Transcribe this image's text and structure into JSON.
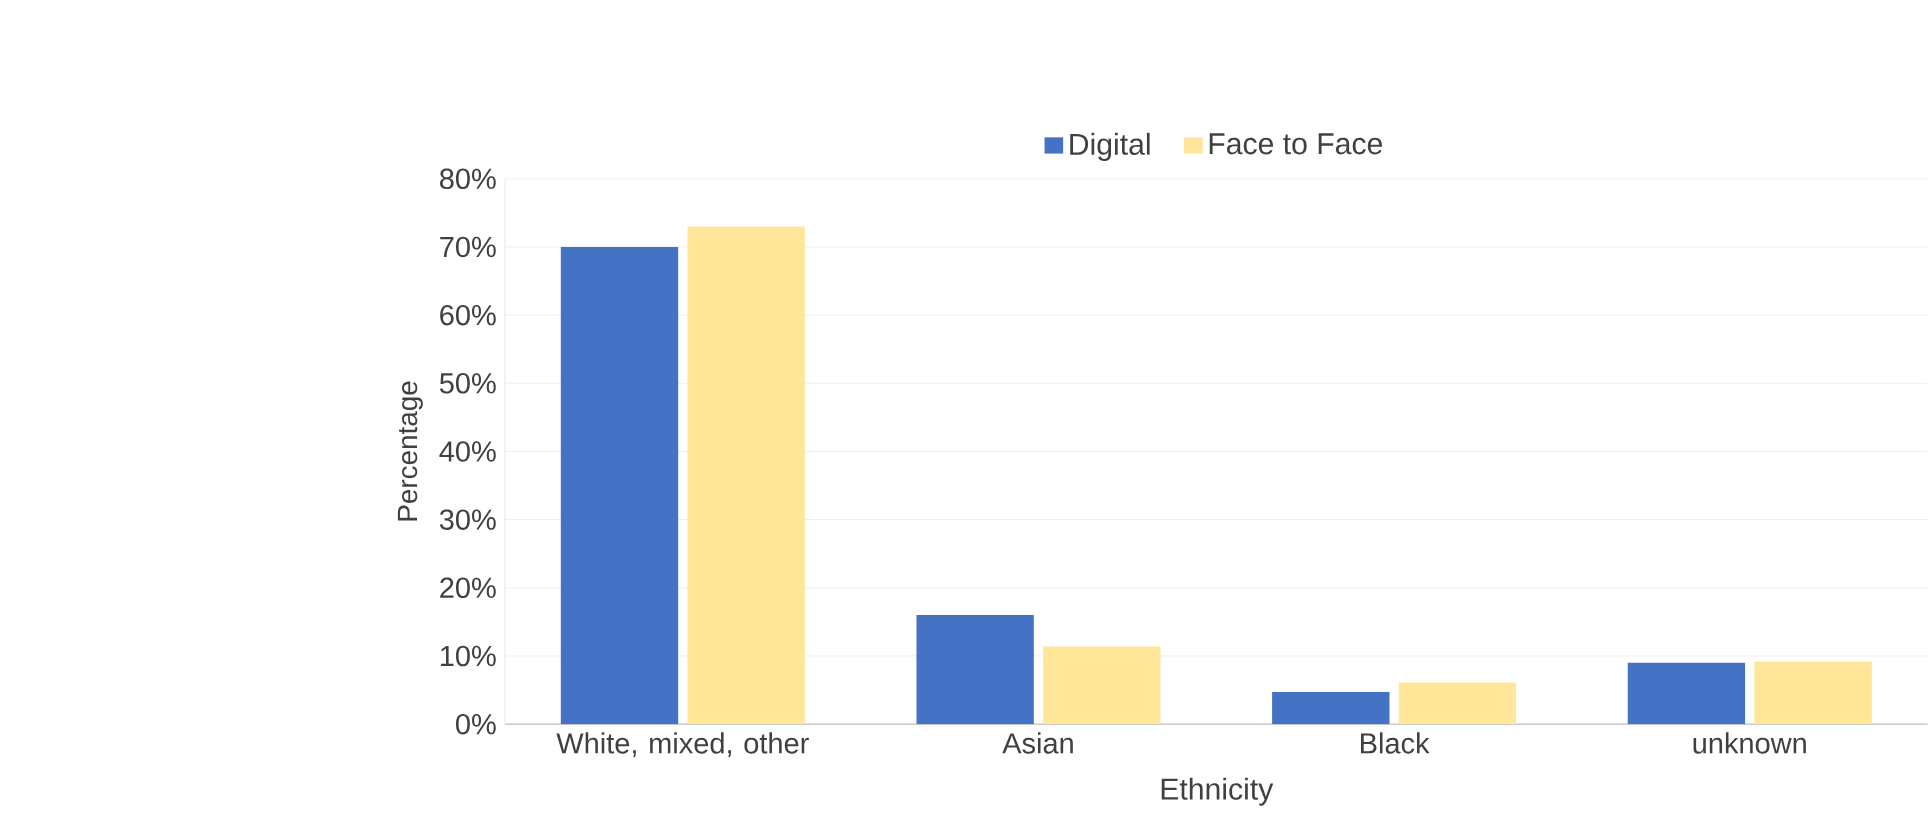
{
  "chart_data": {
    "type": "bar",
    "xlabel": "Ethnicity",
    "ylabel": "Percentage",
    "categories": [
      "White, mixed, other",
      "Asian",
      "Black",
      "unknown"
    ],
    "series": [
      {
        "name": "Digital",
        "color": "#4472c4",
        "values": [
          70.0,
          16.0,
          4.7,
          9.0
        ]
      },
      {
        "name": "Face to Face",
        "color": "#ffe699",
        "values": [
          73.0,
          11.4,
          6.1,
          9.2
        ]
      }
    ],
    "ylim": [
      0,
      80
    ],
    "yticks": [
      {
        "value": 0,
        "label": "0%"
      },
      {
        "value": 10,
        "label": "10%"
      },
      {
        "value": 20,
        "label": "20%"
      },
      {
        "value": 30,
        "label": "30%"
      },
      {
        "value": 40,
        "label": "40%"
      },
      {
        "value": 50,
        "label": "50%"
      },
      {
        "value": 60,
        "label": "60%"
      },
      {
        "value": 70,
        "label": "70%"
      },
      {
        "value": 80,
        "label": "80%"
      }
    ],
    "grid": "y",
    "legend": "top"
  }
}
